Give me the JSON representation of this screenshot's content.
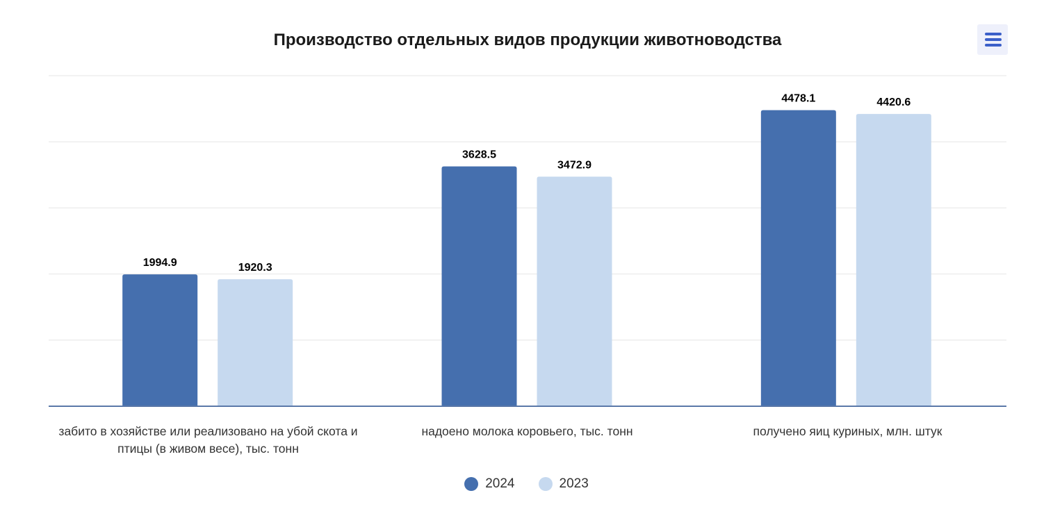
{
  "chart_data": {
    "type": "bar",
    "title": "Производство отдельных видов продукции животноводства",
    "categories": [
      "забито в хозяйстве или реализовано на убой скота и птицы (в живом весе), тыс. тонн",
      "надоено молока коровьего, тыс. тонн",
      "получено яиц куриных, млн. штук"
    ],
    "series": [
      {
        "name": "2024",
        "color": "#456fae",
        "values": [
          1994.9,
          3628.5,
          4478.1
        ],
        "labels": [
          "1994.9",
          "3628.5",
          "4478.1"
        ]
      },
      {
        "name": "2023",
        "color": "#c6d9ef",
        "values": [
          1920.3,
          3472.9,
          4420.6
        ],
        "labels": [
          "1920.3",
          "3472.9",
          "4420.6"
        ]
      }
    ],
    "ylim": [
      0,
      5000
    ],
    "ytick_step": 1000,
    "grid": true,
    "legend_position": "bottom-center",
    "xlabel": "",
    "ylabel": ""
  },
  "menu_icon": "hamburger-menu-icon"
}
